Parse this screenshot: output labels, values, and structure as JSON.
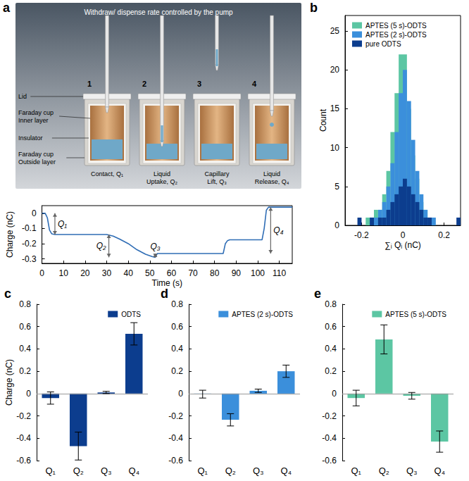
{
  "diagram": {
    "panel": "a",
    "header": "Withdraw/ dispense rate controlled by the pump",
    "parts": [
      "Lid",
      "Faraday cup Inner layer",
      "Insulator",
      "Faraday cup Outside layer"
    ],
    "steps": [
      {
        "number": "1",
        "caption": "Contact, Q₁"
      },
      {
        "number": "2",
        "caption": "Liquid Uptake, Q₂"
      },
      {
        "number": "3",
        "caption": "Capillary Lift, Q₃"
      },
      {
        "number": "4",
        "caption": "Liquid Release, Q₄"
      }
    ]
  },
  "chart_data": [
    {
      "type": "line",
      "x_label": "Time (s)",
      "y_label": "Charge (nC)",
      "x": [
        0,
        1.5,
        2.5,
        3.5,
        4.5,
        6,
        30,
        33,
        36,
        40,
        44,
        48,
        51,
        52.5,
        53.5,
        84,
        85,
        86,
        87,
        102,
        103,
        104,
        105,
        116
      ],
      "values": [
        0,
        0,
        -0.03,
        -0.11,
        -0.135,
        -0.14,
        -0.14,
        -0.15,
        -0.17,
        -0.2,
        -0.24,
        -0.27,
        -0.285,
        -0.29,
        -0.265,
        -0.265,
        -0.2,
        -0.18,
        -0.175,
        -0.175,
        -0.1,
        0.02,
        0.04,
        0.04
      ],
      "color": "#2f6db5",
      "xlim": [
        0,
        116
      ],
      "xticks": [
        0,
        10,
        20,
        30,
        40,
        50,
        60,
        70,
        80,
        90,
        100,
        110
      ],
      "ylim": [
        -0.33,
        0.05
      ],
      "yticks": [
        -0.3,
        -0.2,
        -0.1,
        0
      ],
      "grid": false,
      "annotations": [
        {
          "text": "Q₁",
          "x": 6,
          "y_from": 0,
          "y_to": -0.14
        },
        {
          "text": "Q₂",
          "x": 31,
          "y_from": -0.14,
          "y_to": -0.29
        },
        {
          "text": "Q₃",
          "x": 52.5,
          "y_from": -0.29,
          "y_to": -0.265
        },
        {
          "text": "Q₄",
          "x": 106,
          "y_from": -0.265,
          "y_to": 0.04
        }
      ]
    },
    {
      "panel": "b",
      "type": "histogram",
      "x_label": "∑ᵢ Qᵢ (nC)",
      "y_label": "Count",
      "bins": [
        -0.22,
        -0.2,
        -0.18,
        -0.16,
        -0.14,
        -0.12,
        -0.1,
        -0.08,
        -0.06,
        -0.04,
        -0.02,
        0,
        0.02,
        0.04,
        0.06,
        0.08,
        0.1,
        0.12,
        0.14,
        0.16,
        0.18,
        0.2,
        0.22,
        0.24,
        0.26,
        0.28
      ],
      "series": [
        {
          "name": "APTES (5 s)-ODTS",
          "color": "#5cc6a3",
          "values": [
            0,
            0,
            1,
            1,
            2,
            2,
            4,
            7,
            12,
            17,
            22,
            22,
            15,
            9,
            6,
            3,
            2,
            1,
            0,
            0,
            0,
            0,
            0,
            0,
            0
          ]
        },
        {
          "name": "APTES (2 s)-ODTS",
          "color": "#3b8fdb",
          "values": [
            0,
            0,
            0,
            1,
            1,
            2,
            3,
            5,
            8,
            12,
            17,
            20,
            16,
            11,
            7,
            4,
            2,
            1,
            1,
            0,
            0,
            0,
            0,
            0,
            0
          ]
        },
        {
          "name": "pure ODTS",
          "color": "#0c3d8e",
          "values": [
            1,
            0,
            0,
            1,
            0,
            1,
            1,
            2,
            3,
            4,
            5,
            6,
            5,
            4,
            3,
            2,
            1,
            1,
            0,
            0,
            0,
            0,
            0,
            0,
            1
          ]
        }
      ],
      "xlim": [
        -0.28,
        0.28
      ],
      "xticks": [
        -0.2,
        0,
        0.2
      ],
      "ylim": [
        0,
        27
      ],
      "yticks": [
        0,
        5,
        10,
        15,
        20,
        25
      ],
      "legend": "upper left",
      "grid": false
    },
    {
      "panel": "c",
      "type": "bar",
      "y_label": "Charge (nC)",
      "categories": [
        "Q₁",
        "Q₂",
        "Q₃",
        "Q₄"
      ],
      "series": [
        {
          "name": "ODTS",
          "color": "#0c3d8e",
          "values": [
            -0.04,
            -0.47,
            0.01,
            0.535
          ],
          "errors": [
            0.055,
            0.125,
            0.01,
            0.1
          ]
        }
      ],
      "ylim": [
        -0.6,
        0.8
      ],
      "yticks": [
        -0.6,
        -0.4,
        -0.2,
        0,
        0.2,
        0.4,
        0.6,
        0.8
      ],
      "legend": "upper right",
      "grid": false
    },
    {
      "panel": "d",
      "type": "bar",
      "categories": [
        "Q₁",
        "Q₂",
        "Q₃",
        "Q₄"
      ],
      "series": [
        {
          "name": "APTES (2 s)-ODTS",
          "color": "#3b8fdb",
          "values": [
            -0.005,
            -0.235,
            0.025,
            0.2
          ],
          "errors": [
            0.035,
            0.055,
            0.015,
            0.055
          ]
        }
      ],
      "ylim": [
        -0.6,
        0.8
      ],
      "yticks": [
        -0.6,
        -0.4,
        -0.2,
        0,
        0.2,
        0.4,
        0.6,
        0.8
      ],
      "legend": "upper right",
      "grid": false
    },
    {
      "panel": "e",
      "type": "bar",
      "categories": [
        "Q₁",
        "Q₂",
        "Q₃",
        "Q₄"
      ],
      "series": [
        {
          "name": "APTES (5 s)-ODTS",
          "color": "#5cc6a3",
          "values": [
            -0.04,
            0.485,
            -0.02,
            -0.43
          ],
          "errors": [
            0.07,
            0.13,
            0.03,
            0.095
          ]
        }
      ],
      "ylim": [
        -0.6,
        0.8
      ],
      "yticks": [
        -0.6,
        -0.4,
        -0.2,
        0,
        0.2,
        0.4,
        0.6,
        0.8
      ],
      "legend": "upper right",
      "grid": false
    }
  ]
}
